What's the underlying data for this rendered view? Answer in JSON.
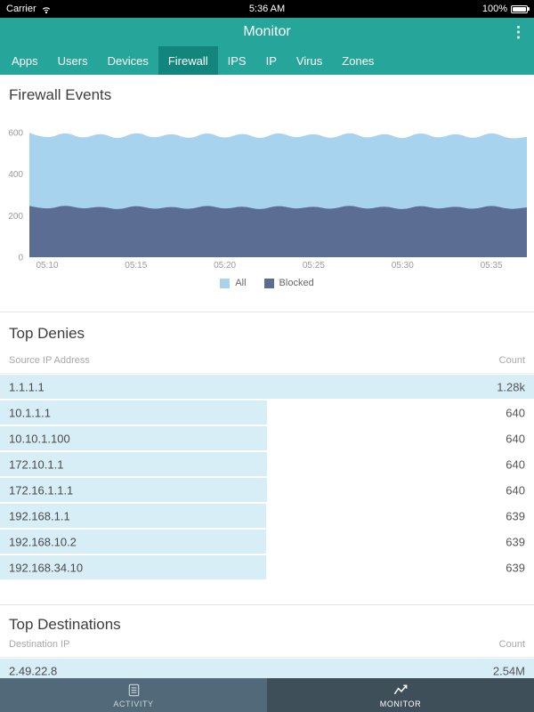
{
  "status_bar": {
    "carrier": "Carrier",
    "time": "5:36 AM",
    "battery_pct": "100%"
  },
  "nav_bar": {
    "title": "Monitor"
  },
  "icons": {
    "kebab_menu": "⋮"
  },
  "tab_bar": {
    "tabs": [
      "Apps",
      "Users",
      "Devices",
      "Firewall",
      "IPS",
      "IP",
      "Virus",
      "Zones"
    ],
    "active": "Firewall"
  },
  "firewall_events": {
    "title": "Firewall Events"
  },
  "chart_data": {
    "type": "area",
    "title": "Firewall Events",
    "x_minutes": [
      9,
      10,
      11,
      12,
      13,
      14,
      15,
      16,
      17,
      18,
      19,
      20,
      21,
      22,
      23,
      24,
      25,
      26,
      27,
      28,
      29,
      30,
      31,
      32,
      33,
      34,
      35,
      36,
      37
    ],
    "xtick_minutes": [
      10,
      15,
      20,
      25,
      30,
      35
    ],
    "xtick_labels": [
      "05:10",
      "05:15",
      "05:20",
      "05:25",
      "05:30",
      "05:35"
    ],
    "ytick_values": [
      0,
      200,
      400,
      600
    ],
    "ylim": [
      0,
      660
    ],
    "grid": false,
    "legend_position": "bottom",
    "series": [
      {
        "name": "All",
        "color": "#a7d3ee",
        "values": [
          599,
          566,
          606,
          568,
          601,
          565,
          607,
          569,
          600,
          566,
          605,
          568,
          602,
          565,
          606,
          570,
          600,
          566,
          607,
          568,
          601,
          565,
          605,
          569,
          600,
          566,
          606,
          568,
          580
        ]
      },
      {
        "name": "Blocked",
        "color": "#5c6d94",
        "values": [
          247,
          227,
          254,
          230,
          247,
          226,
          252,
          229,
          246,
          228,
          253,
          230,
          248,
          226,
          252,
          230,
          247,
          228,
          254,
          229,
          248,
          226,
          252,
          230,
          247,
          228,
          253,
          229,
          240
        ]
      }
    ]
  },
  "top_denies": {
    "title": "Top Denies",
    "col_ip": "Source IP Address",
    "col_count": "Count",
    "max_count": 1280,
    "rows": [
      {
        "ip": "1.1.1.1",
        "count": "1.28k",
        "value": 1280
      },
      {
        "ip": "10.1.1.1",
        "count": "640",
        "value": 640
      },
      {
        "ip": "10.10.1.100",
        "count": "640",
        "value": 640
      },
      {
        "ip": "172.10.1.1",
        "count": "640",
        "value": 640
      },
      {
        "ip": "172.16.1.1.1",
        "count": "640",
        "value": 640
      },
      {
        "ip": "192.168.1.1",
        "count": "639",
        "value": 639
      },
      {
        "ip": "192.168.10.2",
        "count": "639",
        "value": 639
      },
      {
        "ip": "192.168.34.10",
        "count": "639",
        "value": 639
      }
    ]
  },
  "top_destinations": {
    "title": "Top Destinations",
    "col_ip": "Destination IP",
    "col_count": "Count",
    "max_count": 2540000,
    "rows": [
      {
        "ip": "2.49.22.8",
        "count": "2.54M",
        "value": 2540000
      }
    ]
  },
  "bottom_bar": {
    "items": [
      {
        "label": "ACTIVITY",
        "active": false
      },
      {
        "label": "MONITOR",
        "active": true
      }
    ]
  },
  "colors": {
    "teal": "#26a69a",
    "teal_active_tab": "#12867c",
    "series_all": "#a7d3ee",
    "series_blocked": "#5c6d94",
    "row_bar": "#d8eef6",
    "bottom_bar": "#52697a",
    "bottom_bar_active": "#3e4f5a"
  }
}
